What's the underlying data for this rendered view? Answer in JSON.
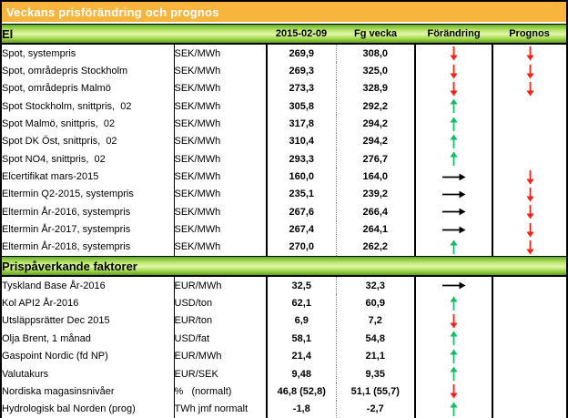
{
  "title": "Veckans prisförändring och prognos",
  "colors": {
    "header_orange": "#f7b53e",
    "section_green": "#8cc63f",
    "arrow_red": "#ff1f13",
    "arrow_green": "#13bd63",
    "arrow_black": "#000000"
  },
  "table": {
    "column_headers": [
      "2015-02-09",
      "Fg vecka",
      "Förändring",
      "Prognos"
    ],
    "sections": [
      {
        "header": "El",
        "rows": [
          {
            "name": "Spot, systempris",
            "unit": "SEK/MWh",
            "current": "269,9",
            "prev": "308,0",
            "change": "down-red",
            "forecast": "down-red"
          },
          {
            "name": "Spot, områdepris Stockholm",
            "unit": "SEK/MWh",
            "current": "269,3",
            "prev": "325,0",
            "change": "down-red",
            "forecast": "down-red"
          },
          {
            "name": "Spot, områdepris Malmö",
            "unit": "SEK/MWh",
            "current": "273,3",
            "prev": "328,9",
            "change": "down-red",
            "forecast": "down-red"
          },
          {
            "name": "Spot Stockholm, snittpris,  02",
            "unit": "SEK/MWh",
            "current": "305,8",
            "prev": "292,2",
            "change": "up-green",
            "forecast": ""
          },
          {
            "name": "Spot Malmö, snittpris,  02",
            "unit": "SEK/MWh",
            "current": "317,8",
            "prev": "294,2",
            "change": "up-green",
            "forecast": ""
          },
          {
            "name": "Spot DK Öst, snittpris,  02",
            "unit": "SEK/MWh",
            "current": "310,4",
            "prev": "294,2",
            "change": "up-green",
            "forecast": ""
          },
          {
            "name": "Spot NO4, snittpris,  02",
            "unit": "SEK/MWh",
            "current": "293,3",
            "prev": "276,7",
            "change": "up-green",
            "forecast": ""
          },
          {
            "name": "Elcertifikat mars-2015",
            "unit": "SEK/MWh",
            "current": "160,0",
            "prev": "164,0",
            "change": "right-black",
            "forecast": "down-red"
          },
          {
            "name": "Eltermin Q2-2015, systempris",
            "unit": "SEK/MWh",
            "current": "235,1",
            "prev": "239,2",
            "change": "right-black",
            "forecast": "down-red"
          },
          {
            "name": "Eltermin År-2016, systempris",
            "unit": "SEK/MWh",
            "current": "267,6",
            "prev": "266,4",
            "change": "right-black",
            "forecast": "down-red"
          },
          {
            "name": "Eltermin År-2017, systempris",
            "unit": "SEK/MWh",
            "current": "267,4",
            "prev": "264,1",
            "change": "right-black",
            "forecast": "down-red"
          },
          {
            "name": "Eltermin År-2018, systempris",
            "unit": "SEK/MWh",
            "current": "270,0",
            "prev": "262,2",
            "change": "up-green",
            "forecast": "down-red"
          }
        ]
      },
      {
        "header": "Prispåverkande faktorer",
        "rows": [
          {
            "name": "Tyskland Base År-2016",
            "unit": "EUR/MWh",
            "current": "32,5",
            "prev": "32,3",
            "change": "right-black",
            "forecast": ""
          },
          {
            "name": "Kol API2 År-2016",
            "unit": "USD/ton",
            "current": "62,1",
            "prev": "60,9",
            "change": "up-green",
            "forecast": ""
          },
          {
            "name": "Utsläppsrätter Dec 2015",
            "unit": "EUR/ton",
            "current": "6,9",
            "prev": "7,2",
            "change": "down-red",
            "forecast": ""
          },
          {
            "name": "Olja Brent, 1 månad",
            "unit": "USD/fat",
            "current": "58,1",
            "prev": "54,8",
            "change": "up-green",
            "forecast": ""
          },
          {
            "name": "Gaspoint Nordic (fd NP)",
            "unit": "EUR/MWh",
            "current": "21,4",
            "prev": "21,1",
            "change": "up-green",
            "forecast": ""
          },
          {
            "name": "Valutakurs",
            "unit": "EUR/SEK",
            "current": "9,48",
            "prev": "9,35",
            "change": "up-green",
            "forecast": ""
          },
          {
            "name": "Nordiska magasinsnivåer",
            "unit": "%   (normalt)",
            "current": "46,8 (52,8)",
            "prev": "51,1 (55,7)",
            "change": "down-red",
            "forecast": ""
          },
          {
            "name": "Hydrologisk bal Norden (prog)",
            "unit": "TWh jmf normalt",
            "current": "-1,8",
            "prev": "-2,7",
            "change": "up-green",
            "forecast": ""
          }
        ]
      }
    ]
  }
}
